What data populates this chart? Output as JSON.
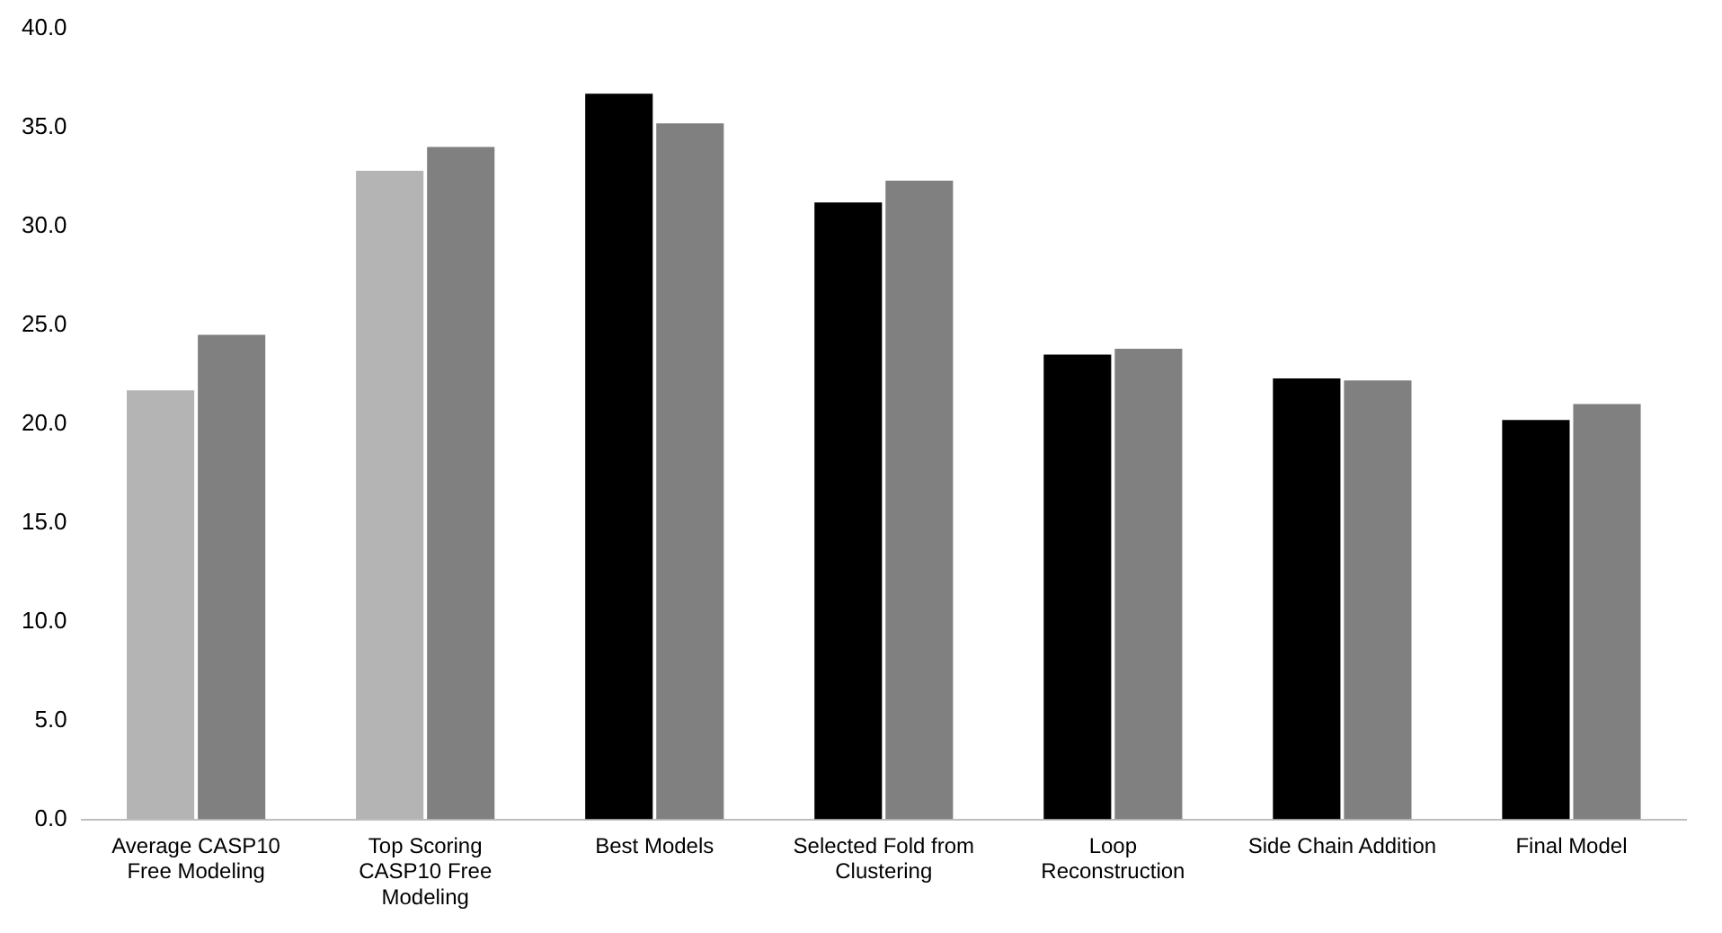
{
  "chart_data": {
    "type": "bar",
    "categories": [
      "Average CASP10 Free Modeling",
      "Top Scoring CASP10 Free Modeling",
      "Best Models",
      "Selected Fold from Clustering",
      "Loop Reconstruction",
      "Side Chain Addition",
      "Final Model"
    ],
    "series": [
      {
        "colors": [
          "#b4b4b4",
          "#b4b4b4",
          "#000000",
          "#000000",
          "#000000",
          "#000000",
          "#000000"
        ],
        "values": [
          21.7,
          32.8,
          36.7,
          31.2,
          23.5,
          22.3,
          20.2
        ]
      },
      {
        "color": "#808080",
        "values": [
          24.5,
          34.0,
          35.2,
          32.3,
          23.8,
          22.2,
          21.0
        ]
      }
    ],
    "ylim": [
      0,
      40
    ],
    "yticks": [
      {
        "value": 0,
        "label": "0.0"
      },
      {
        "value": 5,
        "label": "5.0"
      },
      {
        "value": 10,
        "label": "10.0"
      },
      {
        "value": 15,
        "label": "15.0"
      },
      {
        "value": 20,
        "label": "20.0"
      },
      {
        "value": 25,
        "label": "25.0"
      },
      {
        "value": 30,
        "label": "30.0"
      },
      {
        "value": 35,
        "label": "35.0"
      },
      {
        "value": 40,
        "label": "40.0"
      }
    ],
    "grid": false,
    "legend": false
  }
}
